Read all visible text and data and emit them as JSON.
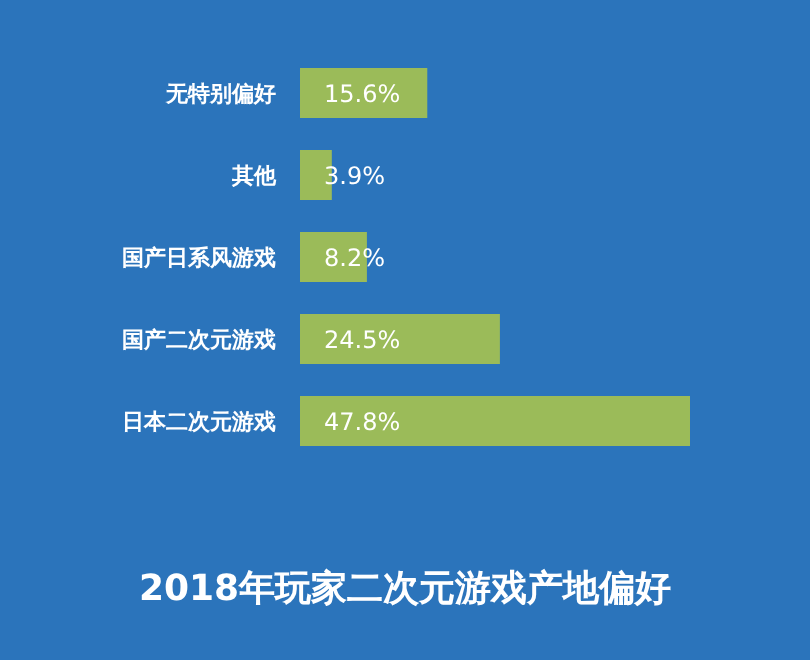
{
  "chart_data": {
    "type": "bar",
    "orientation": "horizontal",
    "title": "2018年玩家二次元游戏产地偏好",
    "categories": [
      "无特别偏好",
      "其他",
      "国产日系风游戏",
      "国产二次元游戏",
      "日本二次元游戏"
    ],
    "values": [
      15.6,
      3.9,
      8.2,
      24.5,
      47.8
    ],
    "value_labels": [
      "15.6%",
      "3.9%",
      "8.2%",
      "24.5%",
      "47.8%"
    ],
    "color": "#9bbb59"
  }
}
